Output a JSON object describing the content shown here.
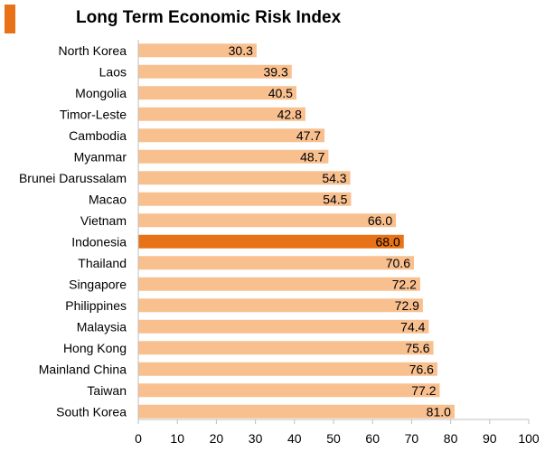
{
  "chart_data": {
    "type": "bar",
    "orientation": "horizontal",
    "title": "Long Term Economic Risk Index",
    "categories": [
      "North Korea",
      "Laos",
      "Mongolia",
      "Timor-Leste",
      "Cambodia",
      "Myanmar",
      "Brunei Darussalam",
      "Macao",
      "Vietnam",
      "Indonesia",
      "Thailand",
      "Singapore",
      "Philippines",
      "Malaysia",
      "Hong Kong",
      "Mainland China",
      "Taiwan",
      "South Korea"
    ],
    "values": [
      30.3,
      39.3,
      40.5,
      42.8,
      47.7,
      48.7,
      54.3,
      54.5,
      66.0,
      68.0,
      70.6,
      72.2,
      72.9,
      74.4,
      75.6,
      76.6,
      77.2,
      81.0
    ],
    "value_labels": [
      "30.3",
      "39.3",
      "40.5",
      "42.8",
      "47.7",
      "48.7",
      "54.3",
      "54.5",
      "66.0",
      "68.0",
      "70.6",
      "72.2",
      "72.9",
      "74.4",
      "75.6",
      "76.6",
      "77.2",
      "81.0"
    ],
    "highlight": "Indonesia",
    "xlim": [
      0,
      100
    ],
    "xticks": [
      0,
      10,
      20,
      30,
      40,
      50,
      60,
      70,
      80,
      90,
      100
    ],
    "xlabel": "",
    "ylabel": "",
    "grid": false
  },
  "colors": {
    "bar": "#F9C08F",
    "highlight": "#E87217",
    "accent": "#E87217",
    "axis": "#BFBFBF",
    "text": "#000000"
  }
}
